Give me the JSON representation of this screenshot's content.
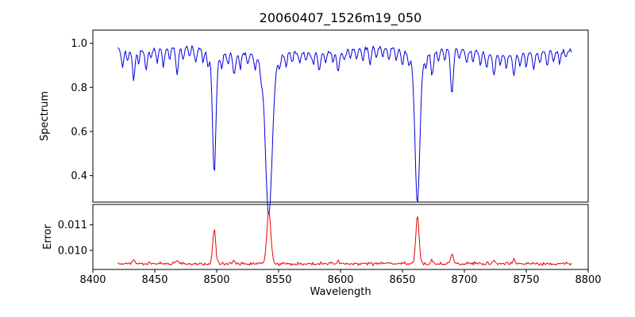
{
  "title": "20060407_1526m19_050",
  "chart_data": {
    "type": "line",
    "title": "20060407_1526m19_050",
    "xlabel": "Wavelength",
    "x_range": [
      8400,
      8800
    ],
    "x_data_range": [
      8420,
      8787
    ],
    "x_step": 0.8,
    "noise_seed": 12345,
    "background_color": "#ffffff",
    "x_ticks": {
      "values": [
        8400,
        8450,
        8500,
        8550,
        8600,
        8650,
        8700,
        8750,
        8800
      ],
      "labels": [
        "8400",
        "8450",
        "8500",
        "8550",
        "8600",
        "8650",
        "8700",
        "8750",
        "8800"
      ]
    },
    "subplots": [
      {
        "ylabel": "Spectrum",
        "color": "#0000dd",
        "ylim": [
          0.28,
          1.06
        ],
        "y_ticks": {
          "values": [
            1.0,
            0.8,
            0.6,
            0.4
          ],
          "labels": [
            "1.0",
            "0.8",
            "0.6",
            "0.4"
          ]
        },
        "continuum": 0.97,
        "noise_gauss": 0.007,
        "noise_absorptive": 0.011,
        "clip_max": 1.035,
        "major_lines_note": "Ca II triplet absorption at 8498, 8542, 8662 with depths to 0.45, 0.30, 0.33",
        "absorption_lines": [
          [
            8498.0,
            0.51,
            1.3
          ],
          [
            8498.0,
            0.05,
            3.5
          ],
          [
            8542.1,
            0.66,
            2.6
          ],
          [
            8542.1,
            0.08,
            6.0
          ],
          [
            8662.1,
            0.63,
            1.9
          ],
          [
            8662.1,
            0.06,
            5.0
          ],
          [
            8690.0,
            0.21,
            1.1
          ],
          [
            8424,
            0.08,
            0.9
          ],
          [
            8428,
            0.05,
            0.8
          ],
          [
            8433,
            0.13,
            1.0
          ],
          [
            8437,
            0.06,
            0.8
          ],
          [
            8443,
            0.09,
            0.9
          ],
          [
            8447,
            0.04,
            0.8
          ],
          [
            8452,
            0.06,
            0.8
          ],
          [
            8457,
            0.08,
            0.9
          ],
          [
            8462,
            0.05,
            0.8
          ],
          [
            8468,
            0.12,
            1.0
          ],
          [
            8473,
            0.06,
            0.8
          ],
          [
            8478,
            0.04,
            0.8
          ],
          [
            8483,
            0.07,
            0.9
          ],
          [
            8489,
            0.05,
            0.8
          ],
          [
            8493,
            0.06,
            0.8
          ],
          [
            8504,
            0.06,
            0.8
          ],
          [
            8509,
            0.05,
            0.8
          ],
          [
            8514,
            0.1,
            1.0
          ],
          [
            8519,
            0.06,
            0.8
          ],
          [
            8525,
            0.05,
            0.8
          ],
          [
            8531,
            0.06,
            0.8
          ],
          [
            8536,
            0.05,
            0.8
          ],
          [
            8551,
            0.05,
            0.8
          ],
          [
            8556,
            0.06,
            0.9
          ],
          [
            8561,
            0.04,
            0.8
          ],
          [
            8567,
            0.05,
            0.8
          ],
          [
            8572,
            0.04,
            0.8
          ],
          [
            8578,
            0.05,
            0.8
          ],
          [
            8583,
            0.08,
            0.9
          ],
          [
            8588,
            0.04,
            0.8
          ],
          [
            8594,
            0.05,
            0.8
          ],
          [
            8598,
            0.09,
            1.0
          ],
          [
            8603,
            0.05,
            0.8
          ],
          [
            8608,
            0.04,
            0.8
          ],
          [
            8613,
            0.05,
            0.8
          ],
          [
            8618,
            0.06,
            0.9
          ],
          [
            8624,
            0.08,
            0.9
          ],
          [
            8629,
            0.05,
            0.8
          ],
          [
            8634,
            0.04,
            0.8
          ],
          [
            8639,
            0.06,
            0.8
          ],
          [
            8645,
            0.05,
            0.8
          ],
          [
            8650,
            0.07,
            0.9
          ],
          [
            8655,
            0.05,
            0.8
          ],
          [
            8669,
            0.06,
            0.8
          ],
          [
            8674,
            0.11,
            1.0
          ],
          [
            8679,
            0.06,
            0.8
          ],
          [
            8684,
            0.05,
            0.8
          ],
          [
            8696,
            0.05,
            0.8
          ],
          [
            8702,
            0.06,
            0.9
          ],
          [
            8707,
            0.05,
            0.8
          ],
          [
            8713,
            0.06,
            0.8
          ],
          [
            8718,
            0.07,
            0.9
          ],
          [
            8724,
            0.09,
            1.0
          ],
          [
            8729,
            0.05,
            0.8
          ],
          [
            8734,
            0.06,
            0.8
          ],
          [
            8740,
            0.1,
            1.0
          ],
          [
            8745,
            0.05,
            0.8
          ],
          [
            8750,
            0.06,
            0.8
          ],
          [
            8756,
            0.08,
            0.9
          ],
          [
            8761,
            0.05,
            0.8
          ],
          [
            8767,
            0.07,
            0.9
          ],
          [
            8772,
            0.05,
            0.8
          ],
          [
            8777,
            0.06,
            0.8
          ],
          [
            8782,
            0.04,
            0.8
          ]
        ]
      },
      {
        "ylabel": "Error",
        "color": "#ee0000",
        "ylim": [
          0.00925,
          0.0118
        ],
        "y_ticks": {
          "values": [
            0.011,
            0.01
          ],
          "labels": [
            "0.011",
            "0.010"
          ]
        },
        "baseline": 0.00945,
        "noise_gauss": 5e-05,
        "noise_emissive": 6e-05,
        "peaks": [
          [
            8498.0,
            0.00135,
            1.2
          ],
          [
            8542.1,
            0.0021,
            1.6
          ],
          [
            8662.1,
            0.0019,
            1.3
          ],
          [
            8690.0,
            0.0004,
            1.0
          ],
          [
            8433,
            0.00018,
            0.9
          ],
          [
            8468,
            0.00015,
            0.9
          ],
          [
            8514,
            0.00013,
            0.9
          ],
          [
            8598,
            0.0001,
            0.9
          ],
          [
            8674,
            0.00015,
            0.9
          ],
          [
            8724,
            0.00012,
            0.9
          ],
          [
            8740,
            0.00015,
            0.9
          ]
        ]
      }
    ]
  }
}
